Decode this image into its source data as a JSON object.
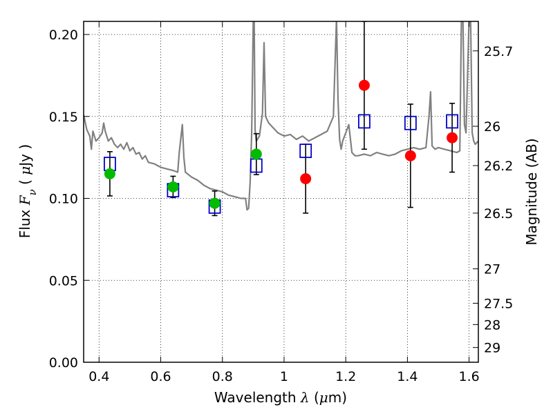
{
  "chart_data": {
    "type": "scatter",
    "title": "",
    "xlabel": "Wavelength  λ (μm)",
    "ylabel": "Flux  Fν  ( μJy )",
    "ylabel_right": "Magnitude (AB)",
    "xlim": [
      0.35,
      1.63
    ],
    "ylim": [
      0.0,
      0.208
    ],
    "grid": true,
    "x_ticks": [
      {
        "value": 0.4,
        "label": "0.4"
      },
      {
        "value": 0.6,
        "label": "0.6"
      },
      {
        "value": 0.8,
        "label": "0.8"
      },
      {
        "value": 1.0,
        "label": "1"
      },
      {
        "value": 1.2,
        "label": "1.2"
      },
      {
        "value": 1.4,
        "label": "1.4"
      },
      {
        "value": 1.6,
        "label": "1.6"
      }
    ],
    "y_ticks": [
      {
        "value": 0.0,
        "label": "0.00"
      },
      {
        "value": 0.05,
        "label": "0.05"
      },
      {
        "value": 0.1,
        "label": "0.10"
      },
      {
        "value": 0.15,
        "label": "0.15"
      },
      {
        "value": 0.2,
        "label": "0.20"
      }
    ],
    "mag_ticks": [
      {
        "flux": 0.19,
        "label": "25.7"
      },
      {
        "flux": 0.144,
        "label": "26"
      },
      {
        "flux": 0.12,
        "label": "26.2"
      },
      {
        "flux": 0.091,
        "label": "26.5"
      },
      {
        "flux": 0.057,
        "label": "27"
      },
      {
        "flux": 0.036,
        "label": "27.5"
      },
      {
        "flux": 0.023,
        "label": "28"
      },
      {
        "flux": 0.009,
        "label": "29"
      }
    ],
    "series": [
      {
        "kind": "line",
        "color": "#808080",
        "x": [
          0.35,
          0.36,
          0.37,
          0.375,
          0.38,
          0.39,
          0.4,
          0.41,
          0.415,
          0.42,
          0.43,
          0.44,
          0.45,
          0.46,
          0.47,
          0.48,
          0.49,
          0.5,
          0.51,
          0.52,
          0.53,
          0.54,
          0.55,
          0.56,
          0.58,
          0.6,
          0.62,
          0.64,
          0.655,
          0.66,
          0.67,
          0.675,
          0.68,
          0.7,
          0.72,
          0.74,
          0.76,
          0.78,
          0.8,
          0.82,
          0.84,
          0.86,
          0.875,
          0.88,
          0.885,
          0.89,
          0.895,
          0.9,
          0.903,
          0.906,
          0.91,
          0.92,
          0.93,
          0.935,
          0.94,
          0.95,
          0.96,
          0.97,
          0.98,
          1.0,
          1.02,
          1.04,
          1.06,
          1.08,
          1.1,
          1.12,
          1.14,
          1.16,
          1.17,
          1.175,
          1.18,
          1.185,
          1.19,
          1.2,
          1.21,
          1.22,
          1.225,
          1.23,
          1.24,
          1.26,
          1.28,
          1.3,
          1.32,
          1.34,
          1.36,
          1.38,
          1.4,
          1.42,
          1.44,
          1.46,
          1.47,
          1.475,
          1.48,
          1.49,
          1.5,
          1.52,
          1.54,
          1.56,
          1.57,
          1.575,
          1.58,
          1.585,
          1.59,
          1.6,
          1.605,
          1.61,
          1.615,
          1.62,
          1.63
        ],
        "y": [
          0.151,
          0.142,
          0.138,
          0.13,
          0.141,
          0.135,
          0.137,
          0.14,
          0.146,
          0.141,
          0.135,
          0.137,
          0.133,
          0.131,
          0.133,
          0.13,
          0.134,
          0.129,
          0.131,
          0.127,
          0.128,
          0.124,
          0.126,
          0.122,
          0.121,
          0.119,
          0.118,
          0.117,
          0.116,
          0.128,
          0.145,
          0.125,
          0.116,
          0.113,
          0.111,
          0.108,
          0.106,
          0.105,
          0.104,
          0.102,
          0.101,
          0.1,
          0.1,
          0.093,
          0.094,
          0.11,
          0.14,
          0.21,
          0.21,
          0.142,
          0.135,
          0.138,
          0.152,
          0.195,
          0.15,
          0.146,
          0.144,
          0.142,
          0.14,
          0.138,
          0.139,
          0.136,
          0.138,
          0.135,
          0.137,
          0.139,
          0.141,
          0.15,
          0.21,
          0.16,
          0.136,
          0.13,
          0.135,
          0.14,
          0.145,
          0.128,
          0.127,
          0.126,
          0.126,
          0.127,
          0.126,
          0.128,
          0.127,
          0.126,
          0.127,
          0.129,
          0.13,
          0.131,
          0.13,
          0.131,
          0.15,
          0.165,
          0.132,
          0.13,
          0.131,
          0.13,
          0.129,
          0.128,
          0.129,
          0.21,
          0.21,
          0.145,
          0.14,
          0.21,
          0.21,
          0.14,
          0.135,
          0.133,
          0.135
        ]
      },
      {
        "kind": "markers",
        "marker": "open-square",
        "color": "#0000cc",
        "x": [
          0.435,
          0.64,
          0.775,
          0.91,
          1.07,
          1.26,
          1.41,
          1.545
        ],
        "y": [
          0.121,
          0.105,
          0.095,
          0.12,
          0.129,
          0.147,
          0.146,
          0.147
        ]
      },
      {
        "kind": "markers",
        "marker": "filled-circle",
        "color": "#00bb00",
        "x": [
          0.435,
          0.64,
          0.775,
          0.91
        ],
        "y": [
          0.115,
          0.107,
          0.097,
          0.127
        ],
        "yerr": [
          0.0135,
          0.0065,
          0.0075,
          0.0125
        ]
      },
      {
        "kind": "markers",
        "marker": "filled-circle",
        "color": "#ff0000",
        "x": [
          1.07,
          1.26,
          1.41,
          1.545
        ],
        "y": [
          0.112,
          0.169,
          0.126,
          0.137
        ],
        "yerr": [
          0.021,
          0.039,
          0.0315,
          0.021
        ]
      }
    ]
  }
}
